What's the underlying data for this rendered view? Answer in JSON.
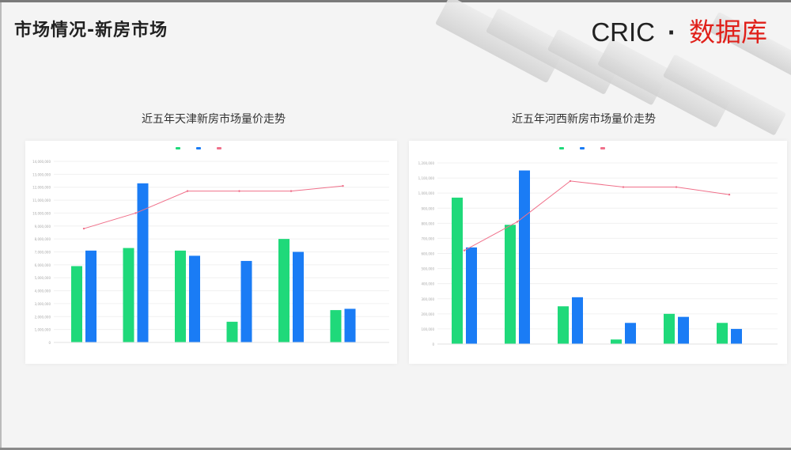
{
  "page": {
    "title": "市场情况-新房市场",
    "brand_cric": "CRIC",
    "brand_dot": "·",
    "brand_db": "数据库"
  },
  "colors": {
    "supply": "#1fd97a",
    "deal": "#1a7cf5",
    "price": "#f0708a",
    "brand_red": "#e0201a"
  },
  "chart_data": [
    {
      "type": "bar",
      "title": "近五年天津新房市场量价走势",
      "ylabel": "",
      "ylim": [
        0,
        14000000
      ],
      "yticks": [
        0,
        1000000,
        2000000,
        3000000,
        4000000,
        5000000,
        6000000,
        7000000,
        8000000,
        9000000,
        10000000,
        11000000,
        12000000,
        13000000,
        14000000
      ],
      "categories": [
        "",
        "",
        "",
        "",
        "",
        ""
      ],
      "series": [
        {
          "color": "#1fd97a",
          "values": [
            5900000,
            7300000,
            7100000,
            1600000,
            8000000,
            2500000
          ]
        },
        {
          "color": "#1a7cf5",
          "values": [
            7100000,
            12300000,
            6700000,
            6300000,
            7000000,
            2600000
          ]
        },
        {
          "color": "#f0708a",
          "kind": "line",
          "values": [
            8800000,
            10000000,
            11700000,
            11700000,
            11700000,
            12100000
          ]
        }
      ]
    },
    {
      "type": "bar",
      "title": "近五年河西新房市场量价走势",
      "ylabel": "",
      "ylim": [
        0,
        1200000
      ],
      "yticks": [
        0,
        100000,
        200000,
        300000,
        400000,
        500000,
        600000,
        700000,
        800000,
        900000,
        1000000,
        1100000,
        1200000
      ],
      "categories": [
        "",
        "",
        "",
        "",
        "",
        ""
      ],
      "series": [
        {
          "color": "#1fd97a",
          "values": [
            970000,
            790000,
            250000,
            30000,
            200000,
            140000
          ]
        },
        {
          "color": "#1a7cf5",
          "values": [
            640000,
            1150000,
            310000,
            140000,
            180000,
            100000
          ]
        },
        {
          "color": "#f0708a",
          "kind": "line",
          "values": [
            620000,
            810000,
            1080000,
            1040000,
            1040000,
            990000
          ]
        }
      ]
    }
  ]
}
